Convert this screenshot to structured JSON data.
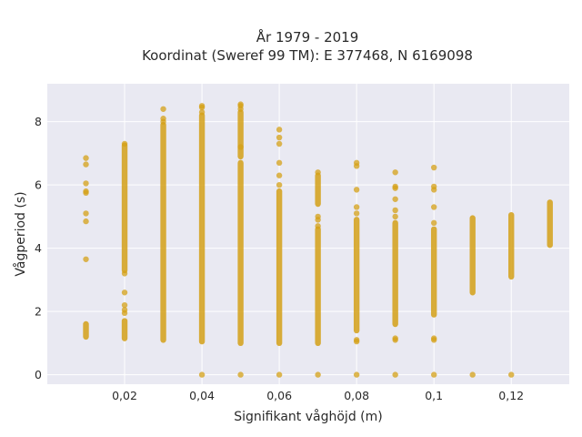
{
  "chart_data": {
    "type": "scatter",
    "title_line1": "År 1979 - 2019",
    "title_line2": "Koordinat (Sweref 99 TM): E 377468, N 6169098",
    "xlabel": "Signifikant våghöjd (m)",
    "ylabel": "Vågperiod (s)",
    "xlim": [
      0.0,
      0.135
    ],
    "ylim": [
      -0.3,
      9.2
    ],
    "x_ticks": [
      0.02,
      0.04,
      0.06,
      0.08,
      0.1,
      0.12
    ],
    "x_tick_labels": [
      "0,02",
      "0,04",
      "0,06",
      "0,08",
      "0,1",
      "0,12"
    ],
    "y_ticks": [
      0,
      2,
      4,
      6,
      8
    ],
    "y_tick_labels": [
      "0",
      "2",
      "4",
      "6",
      "8"
    ],
    "grid": true,
    "colors": {
      "marker": "#d4a017",
      "plot_bg": "#e9e9f2",
      "grid": "#ffffff"
    },
    "columns": [
      {
        "x": 0.01,
        "segments": [
          [
            1.2,
            1.6
          ]
        ],
        "points": [
          3.65,
          4.85,
          5.1,
          5.75,
          5.8,
          6.05,
          6.65,
          6.85
        ]
      },
      {
        "x": 0.02,
        "segments": [
          [
            1.15,
            1.7
          ],
          [
            3.3,
            7.25
          ]
        ],
        "points": [
          1.95,
          2.05,
          2.2,
          2.6,
          3.2,
          7.3
        ]
      },
      {
        "x": 0.03,
        "segments": [
          [
            1.1,
            7.9
          ]
        ],
        "points": [
          8.0,
          8.1,
          8.4
        ]
      },
      {
        "x": 0.04,
        "segments": [
          [
            1.05,
            8.2
          ]
        ],
        "points": [
          0.0,
          8.3,
          8.45,
          8.5
        ]
      },
      {
        "x": 0.05,
        "segments": [
          [
            1.0,
            6.7
          ],
          [
            6.9,
            8.3
          ]
        ],
        "points": [
          0.0,
          7.2,
          8.4,
          8.5,
          8.55
        ]
      },
      {
        "x": 0.06,
        "segments": [
          [
            1.0,
            5.8
          ]
        ],
        "points": [
          0.0,
          6.0,
          6.3,
          6.7,
          7.3,
          7.5,
          7.75
        ]
      },
      {
        "x": 0.07,
        "segments": [
          [
            1.0,
            4.6
          ],
          [
            5.4,
            6.3
          ]
        ],
        "points": [
          0.0,
          4.7,
          4.9,
          5.0,
          6.4
        ]
      },
      {
        "x": 0.08,
        "segments": [
          [
            1.4,
            4.9
          ]
        ],
        "points": [
          0.0,
          1.05,
          1.1,
          5.1,
          5.3,
          5.85,
          6.6,
          6.7
        ]
      },
      {
        "x": 0.09,
        "segments": [
          [
            1.6,
            4.8
          ]
        ],
        "points": [
          0.0,
          1.1,
          1.15,
          5.0,
          5.2,
          5.55,
          5.9,
          5.95,
          6.4
        ]
      },
      {
        "x": 0.1,
        "segments": [
          [
            1.9,
            4.6
          ]
        ],
        "points": [
          0.0,
          1.1,
          1.15,
          4.8,
          5.3,
          5.85,
          5.95,
          6.55
        ]
      },
      {
        "x": 0.11,
        "segments": [
          [
            2.6,
            4.95
          ]
        ],
        "points": [
          0.0
        ]
      },
      {
        "x": 0.12,
        "segments": [
          [
            3.1,
            5.05
          ]
        ],
        "points": [
          0.0
        ]
      },
      {
        "x": 0.13,
        "segments": [
          [
            4.1,
            5.45
          ]
        ],
        "points": []
      }
    ]
  }
}
